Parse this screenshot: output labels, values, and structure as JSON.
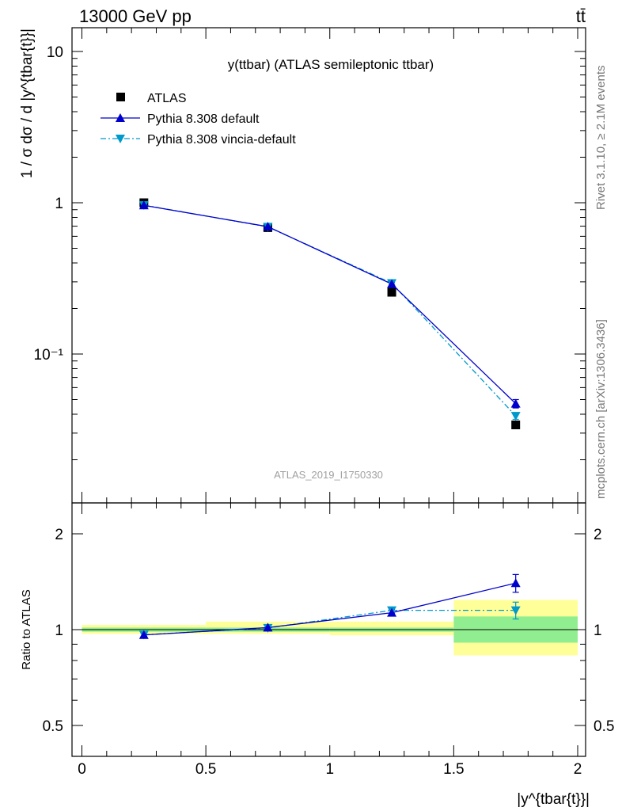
{
  "header": {
    "left": "13000 GeV pp",
    "right": "tt̄"
  },
  "main_plot": {
    "title": "y(ttbar) (ATLAS semileptonic ttbar)",
    "ylabel": "1 / σ dσ / d |y^{tbar{t}}|",
    "watermark": "ATLAS_2019_I1750330"
  },
  "legend": {
    "entries": [
      "ATLAS",
      "Pythia 8.308 default",
      "Pythia 8.308 vincia-default"
    ]
  },
  "ratio_plot": {
    "ylabel": "Ratio to ATLAS"
  },
  "xaxis": {
    "label": "|y^{tbar{t}}|"
  },
  "side_text": {
    "rivet": "Rivet 3.1.10, ≥ 2.1M events",
    "mcplots": "mcplots.cern.ch [arXiv:1306.3436]"
  },
  "colors": {
    "data": "#000000",
    "default": "#0000cc",
    "vincia": "#0099cc",
    "band_inner": "#90ee90",
    "band_outer": "#ffff99"
  },
  "chart_data": [
    {
      "type": "scatter",
      "panel": "main",
      "title": "y(ttbar) (ATLAS semileptonic ttbar)",
      "xlabel": "|y^{tbar{t}}|",
      "ylabel": "1 / σ dσ / d |y^{tbar{t}}|",
      "xlim": [
        0,
        2
      ],
      "ylim": [
        0.012,
        15
      ],
      "yscale": "log",
      "xticks": [
        0,
        0.5,
        1,
        1.5,
        2
      ],
      "xtick_labels": [
        "0",
        "0.5",
        "1",
        "1.5",
        "2"
      ],
      "yticks": [
        0.1,
        1,
        10
      ],
      "ytick_labels": [
        "10⁻¹",
        "1",
        "10"
      ],
      "x": [
        0.25,
        0.75,
        1.25,
        1.75
      ],
      "bins": [
        [
          0,
          0.5
        ],
        [
          0.5,
          1.0
        ],
        [
          1.0,
          1.5
        ],
        [
          1.5,
          2.0
        ]
      ],
      "series": [
        {
          "name": "ATLAS",
          "values": [
            1.0,
            0.685,
            0.256,
            0.034
          ],
          "marker": "square",
          "color": "#000000"
        },
        {
          "name": "Pythia 8.308 default",
          "values": [
            0.962,
            0.695,
            0.29,
            0.047
          ],
          "errors": [
            0.01,
            0.008,
            0.006,
            0.003
          ],
          "marker": "triangle-up",
          "line": "solid",
          "color": "#0000cc"
        },
        {
          "name": "Pythia 8.308 vincia-default",
          "values": [
            0.964,
            0.693,
            0.294,
            0.039
          ],
          "errors": [
            0.01,
            0.008,
            0.006,
            0.002
          ],
          "marker": "triangle-down",
          "line": "dash-dot",
          "color": "#0099cc"
        }
      ],
      "legend_position": "top-left"
    },
    {
      "type": "scatter",
      "panel": "ratio",
      "ylabel": "Ratio to ATLAS",
      "xlim": [
        0,
        2
      ],
      "ylim": [
        0.4,
        2.4
      ],
      "yscale": "log",
      "yticks": [
        0.5,
        1,
        2
      ],
      "ytick_labels": [
        "0.5",
        "1",
        "2"
      ],
      "x": [
        0.25,
        0.75,
        1.25,
        1.75
      ],
      "bands": {
        "bins": [
          [
            0,
            0.5
          ],
          [
            0.5,
            1.0
          ],
          [
            1.0,
            1.5
          ],
          [
            1.5,
            2.0
          ]
        ],
        "inner": [
          [
            0.985,
            1.015
          ],
          [
            0.985,
            1.015
          ],
          [
            0.985,
            1.015
          ],
          [
            0.91,
            1.1
          ]
        ],
        "outer": [
          [
            0.97,
            1.035
          ],
          [
            0.97,
            1.06
          ],
          [
            0.96,
            1.06
          ],
          [
            0.83,
            1.24
          ]
        ]
      },
      "series": [
        {
          "name": "Pythia 8.308 default",
          "values": [
            0.962,
            1.015,
            1.13,
            1.4
          ],
          "errors": [
            0.01,
            0.012,
            0.025,
            0.09
          ],
          "color": "#0000cc"
        },
        {
          "name": "Pythia 8.308 vincia-default",
          "values": [
            0.964,
            1.012,
            1.15,
            1.15
          ],
          "errors": [
            0.01,
            0.012,
            0.025,
            0.07
          ],
          "color": "#0099cc"
        }
      ]
    }
  ]
}
